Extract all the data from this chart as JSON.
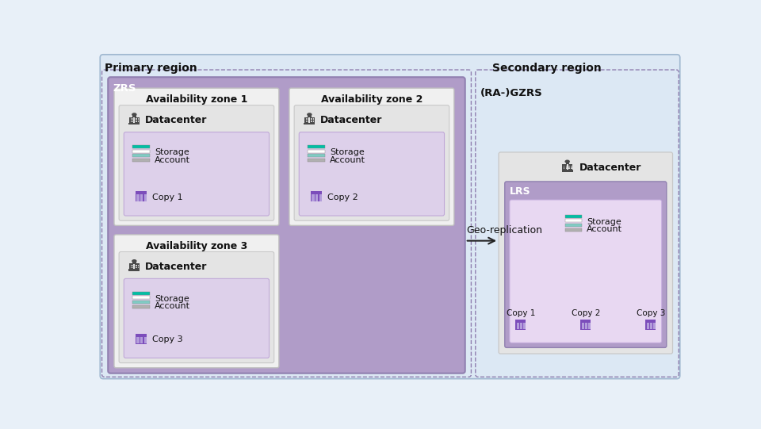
{
  "title_primary": "Primary region",
  "title_secondary": "Secondary region",
  "label_zrs": "ZRS",
  "label_ragzrs": "(RA-)GZRS",
  "label_lrs": "LRS",
  "label_datacenter": "Datacenter",
  "label_geo": "Geo-replication",
  "bg_color": "#e8f0f8",
  "outer_fill": "#dce8f4",
  "outer_edge": "#a0b8d0",
  "zrs_fill": "#b09cc8",
  "zrs_edge": "#9080b0",
  "avzone_fill": "#f0f0f0",
  "avzone_edge": "#c0c0c0",
  "dc_fill": "#e4e4e4",
  "dc_edge": "#c8c8c8",
  "inner_fill": "#ddd0ea",
  "inner_edge": "#c0a8d8",
  "sec_dc_fill": "#e4e4e4",
  "sec_dc_edge": "#c8c8c8",
  "lrs_fill": "#b09cc8",
  "lrs_edge": "#9080b0",
  "lrs_inner_fill": "#e8d8f2",
  "lrs_inner_edge": "#c8b0e0",
  "teal1": "#00bfa5",
  "teal2": "#80cbc4",
  "gray_bar": "#b0b0b0",
  "white": "#ffffff",
  "copy_purple": "#7c4dbb",
  "copy_light": "#b39ddb",
  "dashed_color": "#9080b0",
  "arrow_color": "#222222",
  "text_color": "#111111",
  "white_text": "#ffffff",
  "reg_fontsize": 10,
  "zone_fontsize": 9,
  "dc_fontsize": 9,
  "sm_fontsize": 8,
  "geo_fontsize": 9
}
